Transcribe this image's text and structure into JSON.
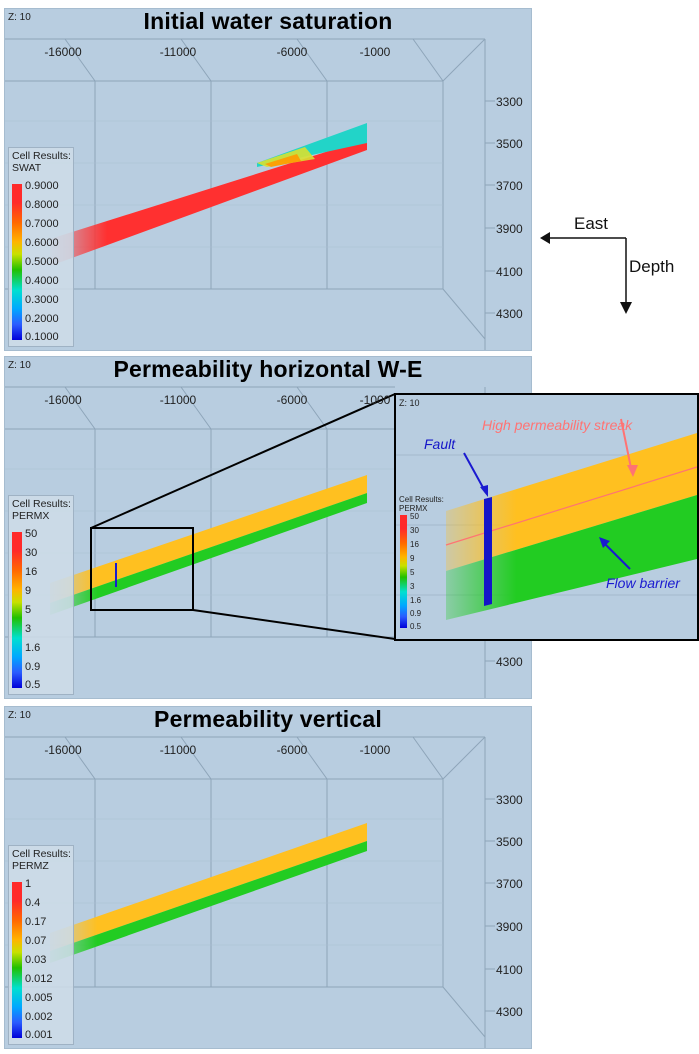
{
  "panels": [
    {
      "title": "Initial water saturation",
      "z_label": "Z: 10",
      "x_ticks": [
        "-16000",
        "-11000",
        "-6000",
        "-1000"
      ],
      "y_ticks": [
        "3300",
        "3500",
        "3700",
        "3900",
        "4100",
        "4300"
      ],
      "legend": {
        "header": "Cell Results:",
        "property": "SWAT",
        "ticks": [
          "0.9000",
          "0.8000",
          "0.7000",
          "0.6000",
          "0.5000",
          "0.4000",
          "0.3000",
          "0.2000",
          "0.1000"
        ],
        "colors": [
          "#ff2a2a",
          "#ff6a00",
          "#ffb400",
          "#c8e100",
          "#21c000",
          "#00e0d0",
          "#00a8ff",
          "#2a5cff",
          "#0000d8"
        ]
      }
    },
    {
      "title": "Permeability horizontal W-E",
      "z_label": "Z: 10",
      "x_ticks": [
        "-16000",
        "-11000",
        "-6000",
        "-1000"
      ],
      "y_ticks": [
        "4300"
      ],
      "legend": {
        "header": "Cell Results:",
        "property": "PERMX",
        "ticks": [
          "50",
          "30",
          "16",
          "9",
          "5",
          "3",
          "1.6",
          "0.9",
          "0.5"
        ],
        "colors": [
          "#ff2a2a",
          "#ff6a00",
          "#ffb400",
          "#c8e100",
          "#21c000",
          "#00e0d0",
          "#00a8ff",
          "#2a5cff",
          "#0000d8"
        ]
      }
    },
    {
      "title": "Permeability vertical",
      "z_label": "Z: 10",
      "x_ticks": [
        "-16000",
        "-11000",
        "-6000",
        "-1000"
      ],
      "y_ticks": [
        "3300",
        "3500",
        "3700",
        "3900",
        "4100",
        "4300"
      ],
      "legend": {
        "header": "Cell Results:",
        "property": "PERMZ",
        "ticks": [
          "1",
          "0.4",
          "0.17",
          "0.07",
          "0.03",
          "0.012",
          "0.005",
          "0.002",
          "0.001"
        ],
        "colors": [
          "#ff2a2a",
          "#ff6a00",
          "#ffb400",
          "#c8e100",
          "#21c000",
          "#00e0d0",
          "#00a8ff",
          "#2a5cff",
          "#0000d8"
        ]
      }
    }
  ],
  "inset": {
    "z_label": "Z: 10",
    "legend": {
      "header": "Cell Results:",
      "property": "PERMX",
      "ticks": [
        "50",
        "30",
        "16",
        "9",
        "5",
        "3",
        "1.6",
        "0.9",
        "0.5"
      ]
    },
    "annotations": {
      "streak": "High permeability streak",
      "fault": "Fault",
      "barrier": "Flow barrier"
    }
  },
  "compass": {
    "east": "East",
    "depth": "Depth"
  },
  "colors": {
    "panel_bg": "#b8cde0",
    "streak": "#ff7373",
    "fault": "#1515c8",
    "barrier": "#1a1ad0"
  }
}
